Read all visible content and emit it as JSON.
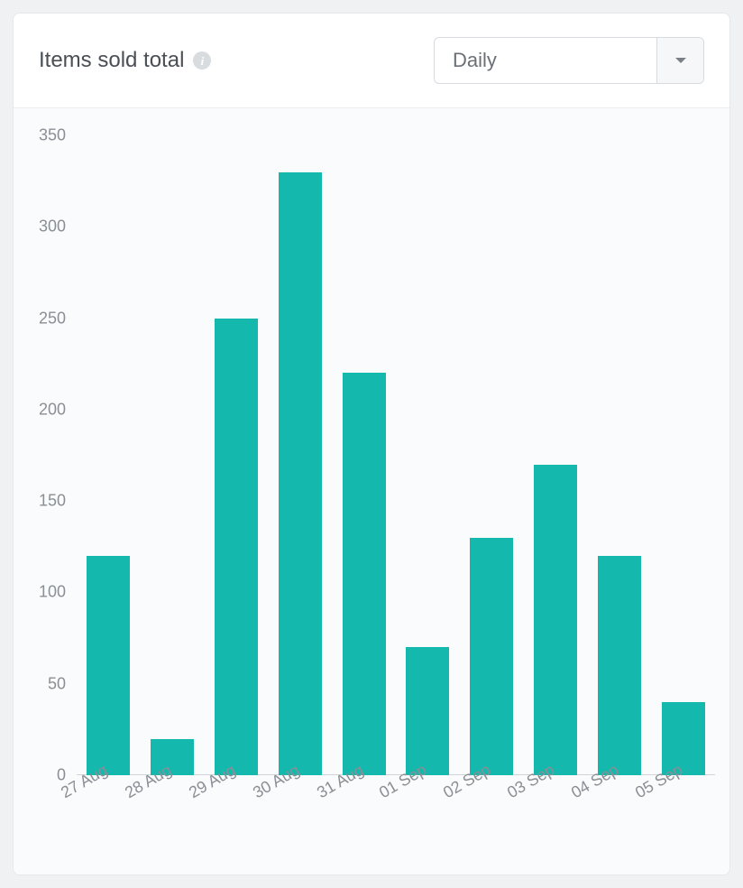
{
  "header": {
    "title": "Items sold total",
    "info_glyph": "i",
    "dropdown": {
      "selected": "Daily"
    }
  },
  "chart": {
    "type": "bar",
    "background_color": "#fafbfc",
    "bar_color": "#15b8ac",
    "axis_color": "#d0d3d7",
    "tick_label_color": "#8a8f95",
    "tick_fontsize": 18,
    "x_label_rotation_deg": -30,
    "bar_width_ratio": 0.68,
    "ylim": [
      0,
      350
    ],
    "ytick_step": 50,
    "yticks": [
      0,
      50,
      100,
      150,
      200,
      250,
      300,
      350
    ],
    "categories": [
      "27 Aug",
      "28 Aug",
      "29 Aug",
      "30 Aug",
      "31 Aug",
      "01 Sep",
      "02 Sep",
      "03 Sep",
      "04 Sep",
      "05 Sep"
    ],
    "values": [
      120,
      20,
      250,
      330,
      220,
      70,
      130,
      170,
      120,
      40
    ]
  }
}
